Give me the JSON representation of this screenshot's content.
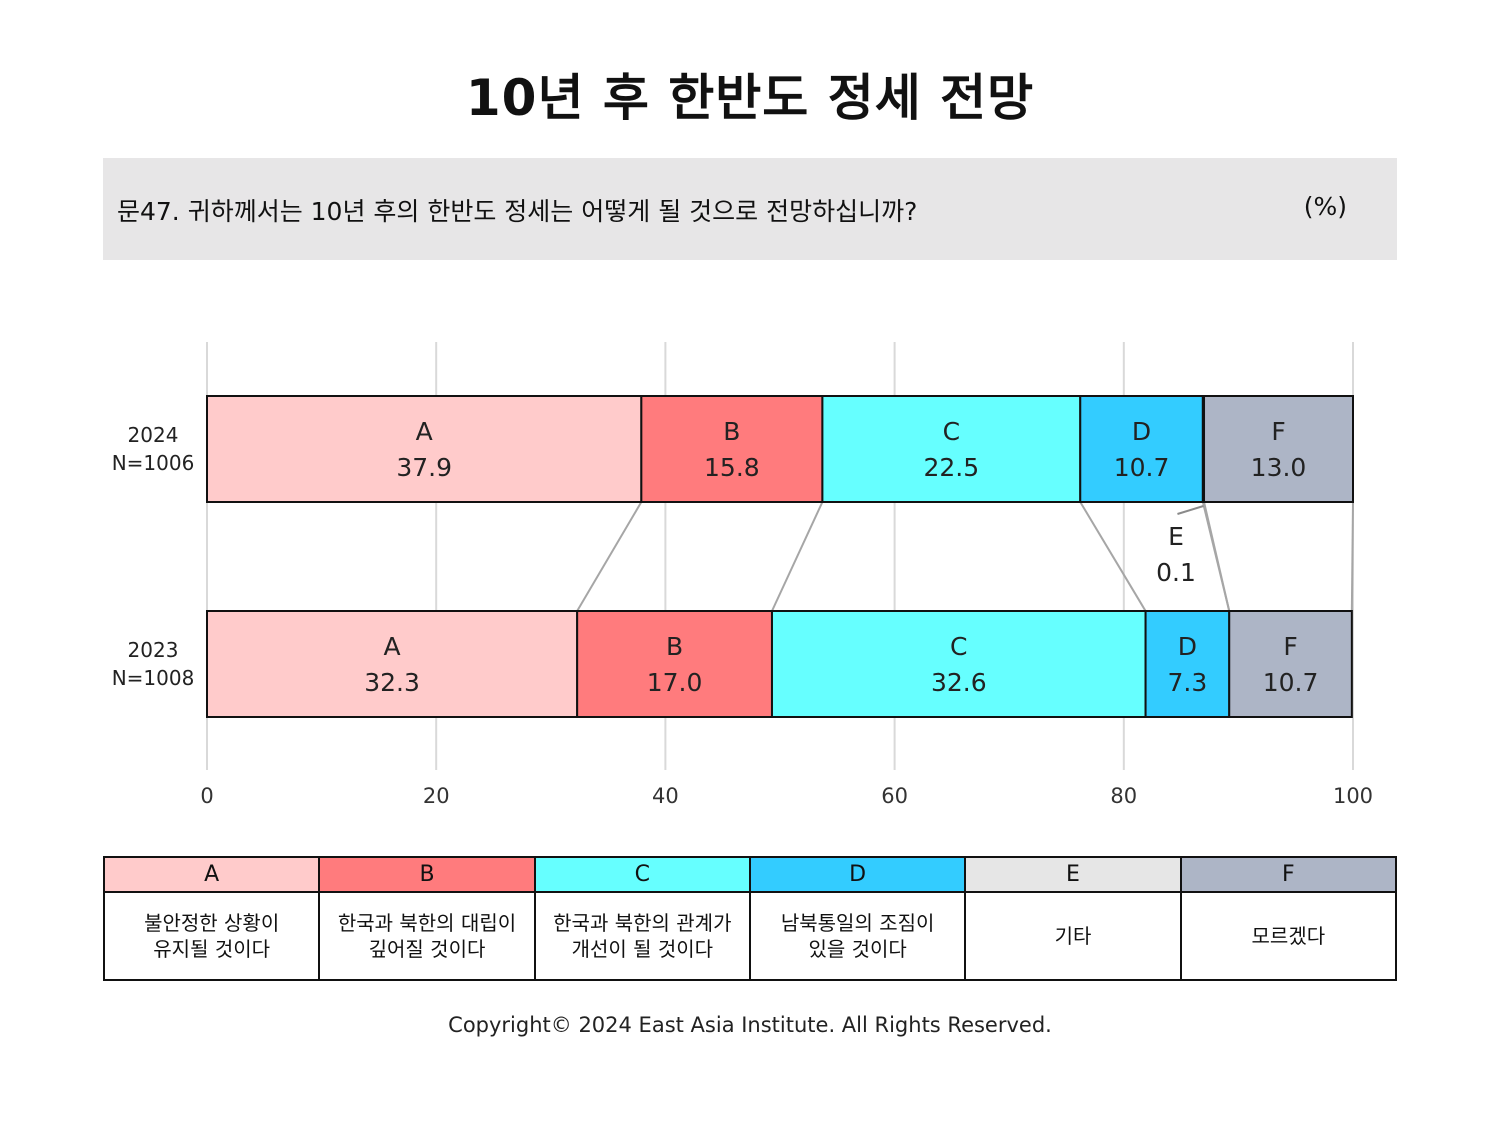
{
  "title": "10년 후 한반도 정세 전망",
  "question": "문47. 귀하께서는 10년 후의 한반도 정세는 어떻게 될 것으로 전망하십니까?",
  "unit": "(%)",
  "copyright": "Copyright© 2024 East Asia Institute. All Rights Reserved.",
  "chart_data": {
    "type": "bar",
    "orientation": "horizontal-stacked-100",
    "xlim": [
      0,
      100
    ],
    "xticks": [
      0,
      20,
      40,
      60,
      80,
      100
    ],
    "grid": true,
    "categories": [
      {
        "year": "2024",
        "n": "N=1006"
      },
      {
        "year": "2023",
        "n": "N=1008"
      }
    ],
    "series": [
      {
        "key": "A",
        "name": "A",
        "color": "#ffcbcb",
        "values": [
          37.9,
          32.3
        ],
        "labels": [
          "37.9",
          "32.3"
        ]
      },
      {
        "key": "B",
        "name": "B",
        "color": "#ff7b7d",
        "values": [
          15.8,
          17.0
        ],
        "labels": [
          "15.8",
          "17.0"
        ]
      },
      {
        "key": "C",
        "name": "C",
        "color": "#66ffff",
        "values": [
          22.5,
          32.6
        ],
        "labels": [
          "22.5",
          "32.6"
        ]
      },
      {
        "key": "D",
        "name": "D",
        "color": "#33ccff",
        "values": [
          10.7,
          7.3
        ],
        "labels": [
          "10.7",
          "7.3"
        ]
      },
      {
        "key": "E",
        "name": "E",
        "color": "#e6e6e6",
        "values": [
          0.1,
          0.0
        ],
        "labels": [
          "0.1",
          ""
        ]
      },
      {
        "key": "F",
        "name": "F",
        "color": "#adb5c6",
        "values": [
          13.0,
          10.7
        ],
        "labels": [
          "13.0",
          "10.7"
        ]
      }
    ],
    "annotation": {
      "series": "E",
      "row": "2024",
      "label": "E",
      "value": "0.1"
    }
  },
  "legend": [
    {
      "key": "A",
      "desc": "불안정한 상황이\n유지될 것이다"
    },
    {
      "key": "B",
      "desc": "한국과 북한의 대립이\n깊어질 것이다"
    },
    {
      "key": "C",
      "desc": "한국과 북한의 관계가\n개선이 될 것이다"
    },
    {
      "key": "D",
      "desc": "남북통일의 조짐이\n있을 것이다"
    },
    {
      "key": "E",
      "desc": "기타"
    },
    {
      "key": "F",
      "desc": "모르겠다"
    }
  ]
}
